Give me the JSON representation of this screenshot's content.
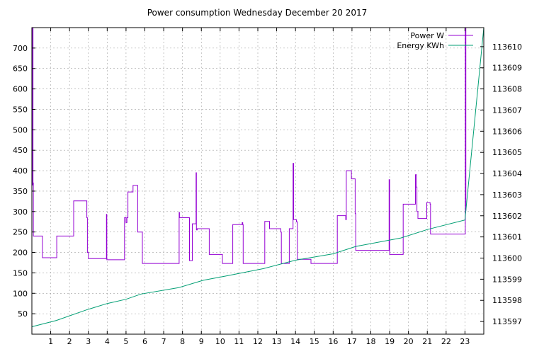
{
  "chart_data": {
    "type": "line",
    "title": "Power consumption Wednesday December 20 2017",
    "xlabel": "",
    "ylabel": "",
    "y2label": "",
    "xlim": [
      0,
      24
    ],
    "ylim": [
      0,
      750
    ],
    "y2lim": [
      113596.4,
      113610.9
    ],
    "x_ticks": [
      1,
      2,
      3,
      4,
      5,
      6,
      7,
      8,
      9,
      10,
      11,
      12,
      13,
      14,
      15,
      16,
      17,
      18,
      19,
      20,
      21,
      22,
      23
    ],
    "y_ticks": [
      50,
      100,
      150,
      200,
      250,
      300,
      350,
      400,
      450,
      500,
      550,
      600,
      650,
      700
    ],
    "y2_ticks": [
      113597,
      113598,
      113599,
      113600,
      113601,
      113602,
      113603,
      113604,
      113605,
      113606,
      113607,
      113608,
      113609,
      113610
    ],
    "grid": true,
    "legend_position": "top-right",
    "series": [
      {
        "name": "Power W",
        "axis": "left",
        "step": true,
        "color": "#9400d3",
        "points": [
          [
            0.0,
            750
          ],
          [
            0.02,
            365
          ],
          [
            0.04,
            750
          ],
          [
            0.06,
            370
          ],
          [
            0.08,
            240
          ],
          [
            0.55,
            240
          ],
          [
            0.56,
            187
          ],
          [
            1.3,
            187
          ],
          [
            1.32,
            240
          ],
          [
            2.2,
            240
          ],
          [
            2.22,
            326
          ],
          [
            2.9,
            326
          ],
          [
            2.92,
            285
          ],
          [
            2.95,
            200
          ],
          [
            3.0,
            185
          ],
          [
            3.95,
            185
          ],
          [
            3.96,
            293
          ],
          [
            3.98,
            182
          ],
          [
            4.9,
            182
          ],
          [
            4.92,
            285
          ],
          [
            5.0,
            273
          ],
          [
            5.05,
            285
          ],
          [
            5.1,
            348
          ],
          [
            5.35,
            348
          ],
          [
            5.37,
            364
          ],
          [
            5.6,
            364
          ],
          [
            5.62,
            250
          ],
          [
            5.85,
            250
          ],
          [
            5.87,
            173
          ],
          [
            7.8,
            173
          ],
          [
            7.82,
            298
          ],
          [
            7.84,
            285
          ],
          [
            8.35,
            285
          ],
          [
            8.37,
            180
          ],
          [
            8.5,
            180
          ],
          [
            8.52,
            270
          ],
          [
            8.7,
            270
          ],
          [
            8.72,
            395
          ],
          [
            8.74,
            255
          ],
          [
            8.78,
            258
          ],
          [
            9.4,
            258
          ],
          [
            9.42,
            195
          ],
          [
            10.1,
            195
          ],
          [
            10.12,
            173
          ],
          [
            10.65,
            173
          ],
          [
            10.67,
            268
          ],
          [
            11.15,
            268
          ],
          [
            11.17,
            273
          ],
          [
            11.2,
            268
          ],
          [
            11.22,
            173
          ],
          [
            12.35,
            173
          ],
          [
            12.37,
            276
          ],
          [
            12.6,
            276
          ],
          [
            12.62,
            258
          ],
          [
            13.2,
            258
          ],
          [
            13.22,
            250
          ],
          [
            13.25,
            173
          ],
          [
            13.65,
            173
          ],
          [
            13.67,
            258
          ],
          [
            13.85,
            258
          ],
          [
            13.87,
            418
          ],
          [
            13.9,
            280
          ],
          [
            14.0,
            280
          ],
          [
            14.05,
            275
          ],
          [
            14.1,
            183
          ],
          [
            14.8,
            183
          ],
          [
            14.82,
            173
          ],
          [
            16.2,
            173
          ],
          [
            16.22,
            290
          ],
          [
            16.65,
            290
          ],
          [
            16.67,
            280
          ],
          [
            16.7,
            400
          ],
          [
            16.95,
            400
          ],
          [
            16.97,
            380
          ],
          [
            17.15,
            380
          ],
          [
            17.17,
            295
          ],
          [
            17.2,
            205
          ],
          [
            18.95,
            205
          ],
          [
            18.97,
            378
          ],
          [
            19.0,
            195
          ],
          [
            19.7,
            195
          ],
          [
            19.72,
            318
          ],
          [
            20.35,
            318
          ],
          [
            20.37,
            390
          ],
          [
            20.42,
            360
          ],
          [
            20.45,
            300
          ],
          [
            20.5,
            283
          ],
          [
            20.95,
            283
          ],
          [
            20.97,
            322
          ],
          [
            21.15,
            318
          ],
          [
            21.17,
            245
          ],
          [
            23.0,
            245
          ],
          [
            23.02,
            750
          ],
          [
            23.05,
            302
          ]
        ]
      },
      {
        "name": "Energy KWh",
        "axis": "right",
        "step": false,
        "color": "#009e73",
        "points": [
          [
            0.0,
            113596.75
          ],
          [
            1.3,
            113597.05
          ],
          [
            2.9,
            113597.55
          ],
          [
            4.0,
            113597.85
          ],
          [
            5.0,
            113598.05
          ],
          [
            5.8,
            113598.3
          ],
          [
            7.8,
            113598.6
          ],
          [
            9.1,
            113598.95
          ],
          [
            10.3,
            113599.15
          ],
          [
            12.3,
            113599.5
          ],
          [
            14.0,
            113599.9
          ],
          [
            16.0,
            113600.2
          ],
          [
            17.2,
            113600.55
          ],
          [
            19.6,
            113600.95
          ],
          [
            21.0,
            113601.35
          ],
          [
            23.0,
            113601.8
          ],
          [
            24.0,
            113610.9
          ]
        ]
      }
    ]
  }
}
